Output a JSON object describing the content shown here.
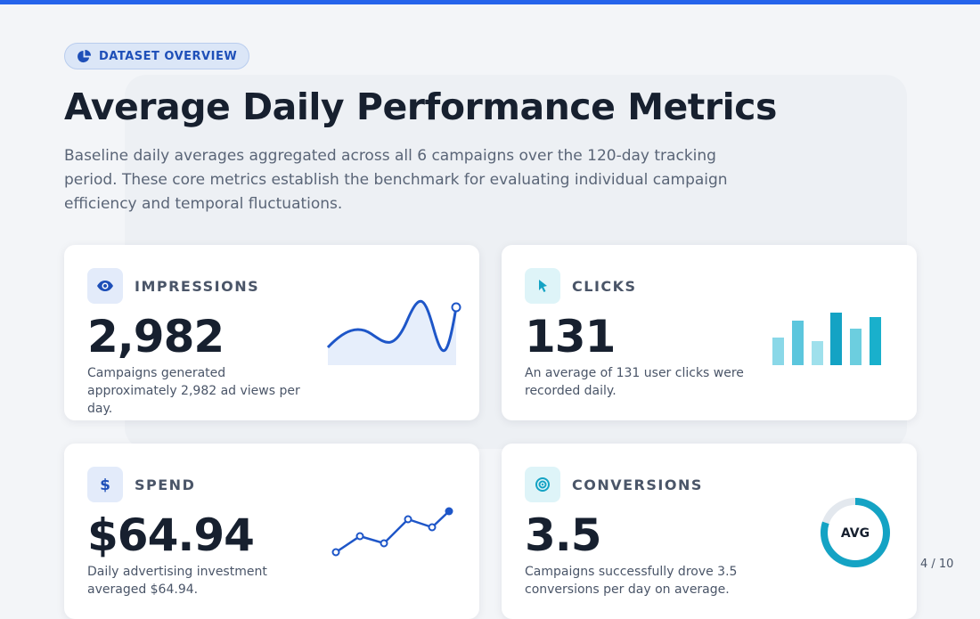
{
  "badge": "DATASET OVERVIEW",
  "title": "Average Daily Performance Metrics",
  "description": "Baseline daily averages aggregated across all 6 campaigns over the 120-day tracking period. These core metrics establish the benchmark for evaluating individual campaign efficiency and temporal fluctuations.",
  "cards": [
    {
      "label": "IMPRESSIONS",
      "value": "2,982",
      "text": "Campaigns generated approximately 2,982 ad views per day."
    },
    {
      "label": "CLICKS",
      "value": "131",
      "text": "An average of 131 user clicks were recorded daily."
    },
    {
      "label": "SPEND",
      "value": "$64.94",
      "text": "Daily advertising investment averaged $64.94."
    },
    {
      "label": "CONVERSIONS",
      "value": "3.5",
      "text": "Campaigns successfully drove 3.5 conversions per day on average.",
      "ring_label": "AVG"
    }
  ],
  "page": "4 / 10"
}
